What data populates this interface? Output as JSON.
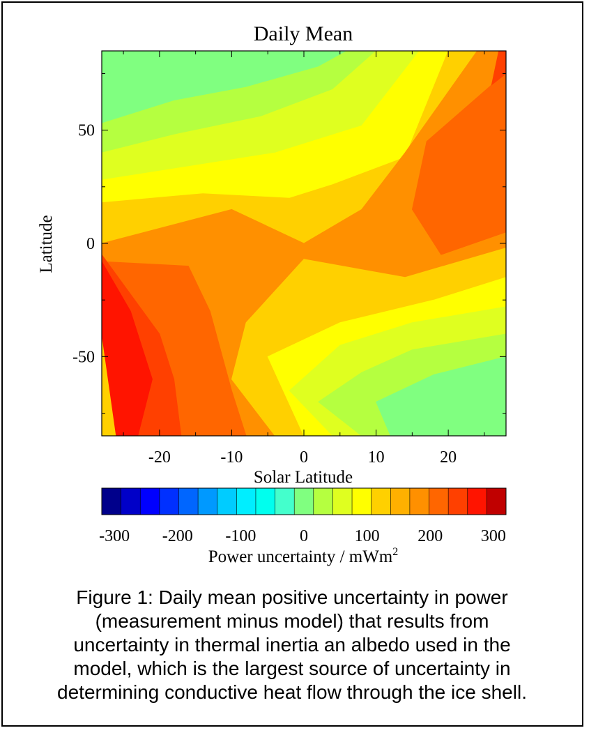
{
  "chart_data": {
    "type": "heatmap",
    "title": "Daily Mean",
    "xlabel": "Solar Latitude",
    "ylabel": "Latitude",
    "xlim": [
      -28,
      28
    ],
    "ylim": [
      -85,
      85
    ],
    "x_ticks": [
      -20,
      -10,
      0,
      10,
      20
    ],
    "y_ticks": [
      -50,
      0,
      50
    ],
    "grid": false,
    "z_description": "positive uncertainty in power, mWm^2; contours highest (~300) at high summer latitudes, near 0 in the winter hemisphere",
    "colorbar": {
      "label": "Power uncertainty / mWm",
      "label_superscript": "2",
      "range": [
        -320,
        320
      ],
      "ticks": [
        -300,
        -200,
        -100,
        0,
        100,
        200,
        300
      ],
      "levels": [
        -320,
        -290,
        -260,
        -230,
        -200,
        -170,
        -140,
        -110,
        -80,
        -50,
        -20,
        10,
        40,
        70,
        100,
        130,
        160,
        190,
        220,
        250,
        280,
        320
      ],
      "colors": [
        "#00008b",
        "#0000c8",
        "#0000ff",
        "#0030ff",
        "#0066ff",
        "#0099ff",
        "#00ccff",
        "#00eeff",
        "#00ffee",
        "#44ffcc",
        "#80ff80",
        "#b5ff40",
        "#dfff20",
        "#ffff00",
        "#ffd000",
        "#ffb000",
        "#ff9000",
        "#ff6600",
        "#ff4000",
        "#ff1400",
        "#c00000"
      ]
    },
    "regions": [
      {
        "color": "#80ff80",
        "points": [
          [
            -28,
            85
          ],
          [
            -28,
            53
          ],
          [
            -18,
            63
          ],
          [
            -8,
            69
          ],
          [
            2,
            78
          ],
          [
            6,
            85
          ]
        ]
      },
      {
        "color": "#b5ff40",
        "points": [
          [
            6,
            85
          ],
          [
            2,
            78
          ],
          [
            -8,
            69
          ],
          [
            -18,
            63
          ],
          [
            -28,
            53
          ],
          [
            -28,
            40
          ],
          [
            -18,
            48
          ],
          [
            -6,
            56
          ],
          [
            4,
            68
          ],
          [
            10,
            85
          ]
        ]
      },
      {
        "color": "#dfff20",
        "points": [
          [
            10,
            85
          ],
          [
            4,
            68
          ],
          [
            -6,
            56
          ],
          [
            -18,
            48
          ],
          [
            -28,
            40
          ],
          [
            -28,
            28
          ],
          [
            -16,
            34
          ],
          [
            -4,
            40
          ],
          [
            8,
            52
          ],
          [
            16,
            85
          ]
        ]
      },
      {
        "color": "#ffff00",
        "points": [
          [
            16,
            85
          ],
          [
            8,
            52
          ],
          [
            -4,
            40
          ],
          [
            -16,
            34
          ],
          [
            -28,
            28
          ],
          [
            -28,
            18
          ],
          [
            -14,
            22
          ],
          [
            -2,
            20
          ],
          [
            4,
            26
          ],
          [
            14,
            38
          ],
          [
            20,
            85
          ]
        ]
      },
      {
        "color": "#ffd000",
        "points": [
          [
            20,
            85
          ],
          [
            14,
            38
          ],
          [
            4,
            26
          ],
          [
            -2,
            20
          ],
          [
            -14,
            22
          ],
          [
            -28,
            18
          ],
          [
            -28,
            0
          ],
          [
            -10,
            15
          ],
          [
            0,
            0
          ],
          [
            8,
            15
          ],
          [
            14,
            40
          ],
          [
            24,
            85
          ]
        ]
      },
      {
        "color": "#ff9000",
        "points": [
          [
            24,
            85
          ],
          [
            14,
            40
          ],
          [
            8,
            15
          ],
          [
            0,
            0
          ],
          [
            -10,
            15
          ],
          [
            -28,
            0
          ],
          [
            -28,
            -8
          ],
          [
            -16,
            -10
          ],
          [
            -13,
            -30
          ],
          [
            -10,
            -65
          ],
          [
            -8,
            -85
          ],
          [
            -4,
            -85
          ],
          [
            -10,
            -60
          ],
          [
            -8,
            -35
          ],
          [
            0,
            -7
          ],
          [
            14,
            -15
          ],
          [
            28,
            -2
          ],
          [
            28,
            5
          ],
          [
            19,
            -5
          ],
          [
            15,
            15
          ],
          [
            17,
            45
          ],
          [
            26,
            70
          ],
          [
            28,
            75
          ],
          [
            28,
            85
          ]
        ]
      },
      {
        "color": "#ff6600",
        "points": [
          [
            28,
            75
          ],
          [
            26,
            70
          ],
          [
            17,
            45
          ],
          [
            15,
            15
          ],
          [
            19,
            -5
          ],
          [
            28,
            5
          ]
        ]
      },
      {
        "color": "#ff4000",
        "points": [
          [
            28,
            85
          ],
          [
            28,
            75
          ],
          [
            26,
            70
          ],
          [
            27,
            85
          ]
        ]
      },
      {
        "color": "#ff6600",
        "points": [
          [
            -28,
            -8
          ],
          [
            -16,
            -10
          ],
          [
            -13,
            -30
          ],
          [
            -10,
            -65
          ],
          [
            -8,
            -85
          ],
          [
            -17,
            -85
          ],
          [
            -18,
            -60
          ],
          [
            -20,
            -40
          ],
          [
            -28,
            -5
          ]
        ]
      },
      {
        "color": "#ff4000",
        "points": [
          [
            -28,
            -5
          ],
          [
            -20,
            -40
          ],
          [
            -18,
            -60
          ],
          [
            -17,
            -85
          ],
          [
            -23,
            -85
          ],
          [
            -21,
            -60
          ],
          [
            -24,
            -30
          ],
          [
            -28,
            -8
          ]
        ]
      },
      {
        "color": "#ff1400",
        "points": [
          [
            -28,
            -8
          ],
          [
            -24,
            -30
          ],
          [
            -21,
            -60
          ],
          [
            -23,
            -85
          ],
          [
            -26,
            -85
          ],
          [
            -28,
            -40
          ]
        ]
      },
      {
        "color": "#ffd000",
        "points": [
          [
            -8,
            -85
          ],
          [
            -4,
            -85
          ],
          [
            -10,
            -60
          ],
          [
            -8,
            -35
          ],
          [
            0,
            -7
          ],
          [
            14,
            -15
          ],
          [
            28,
            -2
          ],
          [
            28,
            -15
          ],
          [
            18,
            -25
          ],
          [
            5,
            -35
          ],
          [
            -5,
            -50
          ],
          [
            0,
            -85
          ]
        ]
      },
      {
        "color": "#ffff00",
        "points": [
          [
            0,
            -85
          ],
          [
            -5,
            -50
          ],
          [
            5,
            -35
          ],
          [
            18,
            -25
          ],
          [
            28,
            -15
          ],
          [
            28,
            -28
          ],
          [
            15,
            -35
          ],
          [
            5,
            -45
          ],
          [
            -2,
            -65
          ],
          [
            4,
            -85
          ]
        ]
      },
      {
        "color": "#dfff20",
        "points": [
          [
            4,
            -85
          ],
          [
            -2,
            -65
          ],
          [
            5,
            -45
          ],
          [
            15,
            -35
          ],
          [
            28,
            -28
          ],
          [
            28,
            -40
          ],
          [
            15,
            -47
          ],
          [
            8,
            -57
          ],
          [
            2,
            -70
          ],
          [
            8,
            -85
          ]
        ]
      },
      {
        "color": "#b5ff40",
        "points": [
          [
            8,
            -85
          ],
          [
            2,
            -70
          ],
          [
            8,
            -57
          ],
          [
            15,
            -47
          ],
          [
            28,
            -40
          ],
          [
            28,
            -50
          ],
          [
            18,
            -58
          ],
          [
            10,
            -70
          ],
          [
            12,
            -85
          ]
        ]
      },
      {
        "color": "#80ff80",
        "points": [
          [
            12,
            -85
          ],
          [
            10,
            -70
          ],
          [
            18,
            -58
          ],
          [
            28,
            -50
          ],
          [
            28,
            -85
          ]
        ]
      }
    ]
  },
  "figure": {
    "caption_lines": [
      "Figure 1: Daily mean positive uncertainty in power",
      "(measurement minus model) that results from",
      "uncertainty in thermal inertia an albedo used in the",
      "model, which is the largest source of uncertainty in",
      "determining conductive heat flow through the ice shell."
    ]
  }
}
